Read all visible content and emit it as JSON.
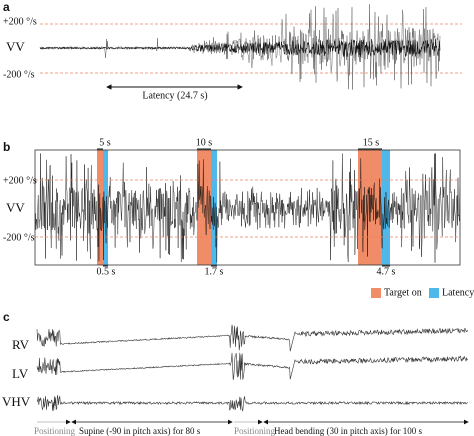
{
  "panel_a": {
    "label": "a",
    "upper": "+200 °/s",
    "channel": "VV",
    "lower": "-200 °/s",
    "latency": "Latency (24.7 s)"
  },
  "panel_b": {
    "label": "b",
    "upper": "+200 °/s",
    "channel": "VV",
    "lower": "-200 °/s",
    "durations": [
      "5 s",
      "10 s",
      "15 s"
    ],
    "latencies": [
      "0.5 s",
      "1.7 s",
      "4.7 s"
    ],
    "legend": [
      "Target on",
      "Latency"
    ]
  },
  "panel_c": {
    "label": "c",
    "channels": [
      "RV",
      "LV",
      "VHV"
    ],
    "phases": [
      "Positioning",
      "Supine (-90 in pitch axis) for 80 s",
      "Positioning",
      "Head bending (30  in pitch axis) for 100 s"
    ]
  }
}
